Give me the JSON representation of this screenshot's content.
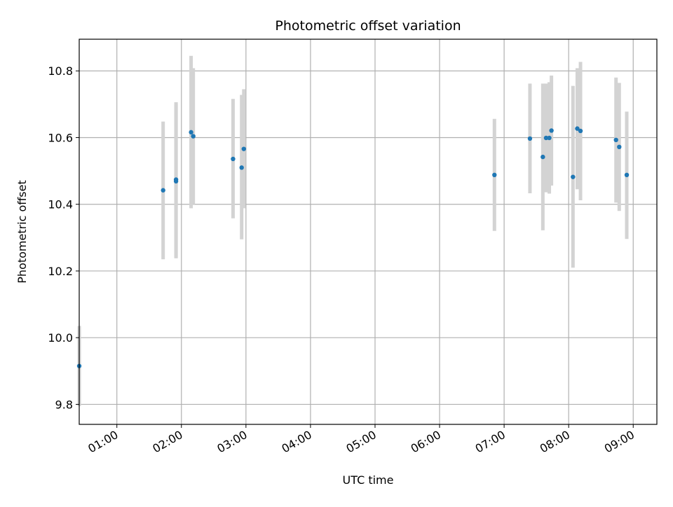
{
  "chart_data": {
    "type": "scatter",
    "title": "Photometric offset variation",
    "xlabel": "UTC time",
    "ylabel": "Photometric offset",
    "xlim": [
      "00:25",
      "09:22"
    ],
    "ylim": [
      9.74,
      10.895
    ],
    "grid": true,
    "x_ticks": [
      "01:00",
      "02:00",
      "03:00",
      "04:00",
      "05:00",
      "06:00",
      "07:00",
      "08:00",
      "09:00"
    ],
    "y_ticks": [
      9.8,
      10.0,
      10.2,
      10.4,
      10.6,
      10.8
    ],
    "y_tick_labels": [
      "9.8",
      "10.0",
      "10.2",
      "10.4",
      "10.6",
      "10.8"
    ],
    "colors": {
      "point": "#1f77b4",
      "errorbar": "#d3d3d3",
      "grid": "#b0b0b0"
    },
    "points": [
      {
        "time": "00:25",
        "y": 9.915,
        "yerr_low": 9.795,
        "yerr_high": 10.035
      },
      {
        "time": "01:43",
        "y": 10.442,
        "yerr_low": 10.235,
        "yerr_high": 10.648
      },
      {
        "time": "01:55",
        "y": 10.474,
        "yerr_low": 10.238,
        "yerr_high": 10.706
      },
      {
        "time": "01:55",
        "y": 10.469,
        "yerr_low": 10.24,
        "yerr_high": 10.7
      },
      {
        "time": "02:09",
        "y": 10.616,
        "yerr_low": 10.388,
        "yerr_high": 10.845
      },
      {
        "time": "02:11",
        "y": 10.604,
        "yerr_low": 10.4,
        "yerr_high": 10.808
      },
      {
        "time": "02:48",
        "y": 10.536,
        "yerr_low": 10.358,
        "yerr_high": 10.716
      },
      {
        "time": "02:56",
        "y": 10.51,
        "yerr_low": 10.295,
        "yerr_high": 10.728
      },
      {
        "time": "02:58",
        "y": 10.566,
        "yerr_low": 10.388,
        "yerr_high": 10.745
      },
      {
        "time": "06:51",
        "y": 10.488,
        "yerr_low": 10.32,
        "yerr_high": 10.656
      },
      {
        "time": "07:24",
        "y": 10.597,
        "yerr_low": 10.433,
        "yerr_high": 10.762
      },
      {
        "time": "07:36",
        "y": 10.542,
        "yerr_low": 10.322,
        "yerr_high": 10.762
      },
      {
        "time": "07:39",
        "y": 10.599,
        "yerr_low": 10.436,
        "yerr_high": 10.762
      },
      {
        "time": "07:42",
        "y": 10.599,
        "yerr_low": 10.432,
        "yerr_high": 10.766
      },
      {
        "time": "07:44",
        "y": 10.621,
        "yerr_low": 10.456,
        "yerr_high": 10.786
      },
      {
        "time": "08:04",
        "y": 10.482,
        "yerr_low": 10.21,
        "yerr_high": 10.755
      },
      {
        "time": "08:08",
        "y": 10.627,
        "yerr_low": 10.445,
        "yerr_high": 10.808
      },
      {
        "time": "08:11",
        "y": 10.62,
        "yerr_low": 10.412,
        "yerr_high": 10.827
      },
      {
        "time": "08:44",
        "y": 10.593,
        "yerr_low": 10.405,
        "yerr_high": 10.78
      },
      {
        "time": "08:47",
        "y": 10.572,
        "yerr_low": 10.38,
        "yerr_high": 10.764
      },
      {
        "time": "08:54",
        "y": 10.488,
        "yerr_low": 10.296,
        "yerr_high": 10.678
      }
    ]
  }
}
